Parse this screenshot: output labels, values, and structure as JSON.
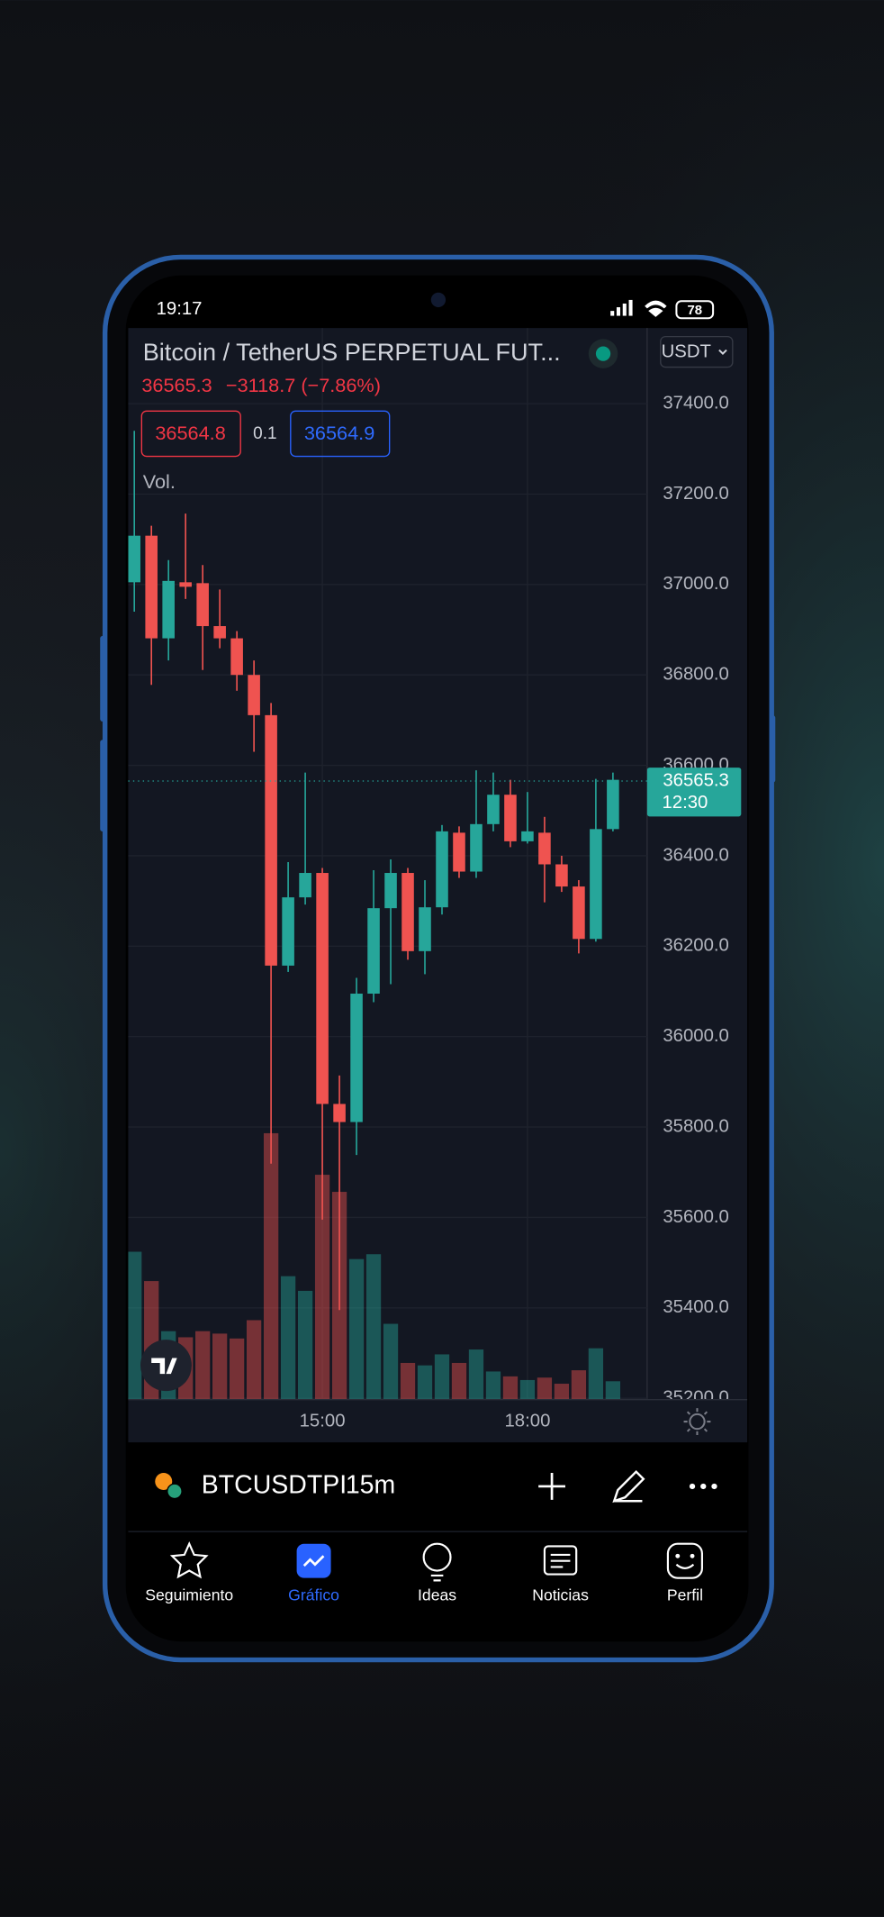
{
  "status_bar": {
    "time": "19:17",
    "battery": "78"
  },
  "header": {
    "title": "Bitcoin / TetherUS PERPETUAL FUT...",
    "price": "36565.3",
    "change": "−3118.7 (−7.86%)",
    "bid": "36564.8",
    "spread": "0.1",
    "ask": "36564.9",
    "volume_label": "Vol.",
    "currency": "USDT"
  },
  "chart_data": {
    "type": "candlestick",
    "categories": [
      null,
      null,
      null,
      null,
      null,
      null,
      null,
      null,
      null,
      null,
      null,
      "15:00",
      null,
      null,
      null,
      null,
      null,
      null,
      null,
      null,
      null,
      null,
      null,
      "18:00",
      null,
      null,
      null,
      null,
      null
    ],
    "open": [
      37005,
      37108,
      36881,
      37005,
      37003,
      36908,
      36881,
      36800,
      36711,
      36157,
      36308,
      36362,
      35851,
      35811,
      36095,
      36284,
      36362,
      36189,
      36286,
      36451,
      36365,
      36470,
      36535,
      36432,
      36451,
      36381,
      36332,
      36216,
      36459
    ],
    "high": [
      37340,
      37130,
      37054,
      37157,
      37043,
      36989,
      36897,
      36832,
      36738,
      36386,
      36584,
      36373,
      35914,
      36130,
      36368,
      36392,
      36373,
      36346,
      36468,
      36465,
      36589,
      36584,
      36568,
      36541,
      36486,
      36400,
      36346,
      36570,
      36584
    ],
    "low": [
      36940,
      36778,
      36832,
      36968,
      36811,
      36859,
      36765,
      36630,
      35719,
      36143,
      36292,
      35595,
      35395,
      35738,
      36076,
      36116,
      36170,
      36138,
      36270,
      36351,
      36351,
      36454,
      36419,
      36427,
      36297,
      36320,
      36184,
      36210,
      36454
    ],
    "close": [
      37108,
      36881,
      37008,
      36995,
      36908,
      36881,
      36800,
      36711,
      36157,
      36308,
      36362,
      35851,
      35811,
      36095,
      36284,
      36362,
      36189,
      36286,
      36454,
      36365,
      36470,
      36535,
      36432,
      36454,
      36381,
      36332,
      36216,
      36459,
      36568
    ],
    "volume": [
      121,
      97,
      56,
      51,
      56,
      54,
      50,
      65,
      218,
      101,
      89,
      184,
      170,
      115,
      119,
      62,
      30,
      28,
      37,
      30,
      41,
      23,
      19,
      16,
      18,
      13,
      24,
      42,
      15
    ],
    "up_color": "#26a69a",
    "down_color": "#ef5350",
    "ylim": [
      35197,
      37562
    ],
    "yticks": [
      {
        "value": 35200,
        "label": "35200.0"
      },
      {
        "value": 35400,
        "label": "35400.0"
      },
      {
        "value": 35600,
        "label": "35600.0"
      },
      {
        "value": 35800,
        "label": "35800.0"
      },
      {
        "value": 36000,
        "label": "36000.0"
      },
      {
        "value": 36200,
        "label": "36200.0"
      },
      {
        "value": 36400,
        "label": "36400.0"
      },
      {
        "value": 36600,
        "label": "36600.0"
      },
      {
        "value": 36800,
        "label": "36800.0"
      },
      {
        "value": 37000,
        "label": "37000.0"
      },
      {
        "value": 37200,
        "label": "37200.0"
      },
      {
        "value": 37400,
        "label": "37400.0"
      }
    ],
    "grid": true,
    "last_price": 36565.3,
    "countdown": "12:30"
  },
  "toolbar": {
    "symbol": "BTCUSDTPI",
    "interval": "15m"
  },
  "nav": [
    {
      "label": "Seguimiento"
    },
    {
      "label": "Gráfico"
    },
    {
      "label": "Ideas"
    },
    {
      "label": "Noticias"
    },
    {
      "label": "Perfil"
    }
  ]
}
